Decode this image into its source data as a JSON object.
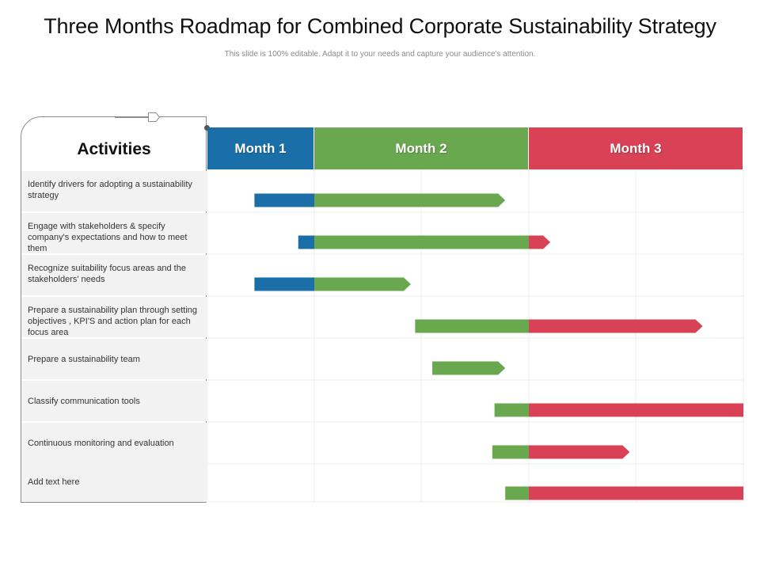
{
  "title": "Three Months Roadmap for Combined Corporate Sustainability Strategy",
  "subtitle": "This slide is 100% editable.  Adapt it to your needs and capture your audience's attention.",
  "activities_header": "Activities",
  "months": [
    {
      "label": "Month 1",
      "color": "#1b6fa8"
    },
    {
      "label": "Month 2",
      "color": "#6aa84f"
    },
    {
      "label": "Month 3",
      "color": "#d94156"
    }
  ],
  "activities": [
    {
      "label": "Identify drivers for adopting a sustainability strategy",
      "start": 0.44,
      "end": 1.89
    },
    {
      "label": "Engage with stakeholders & specify company's expectations and how to meet them",
      "start": 0.85,
      "end": 2.1
    },
    {
      "label": "Recognize suitability focus areas and the stakeholders' needs",
      "start": 0.44,
      "end": 1.45
    },
    {
      "label": "Prepare a sustainability plan through setting objectives , KPI'S and action plan for each focus area",
      "start": 1.47,
      "end": 2.81
    },
    {
      "label": "Prepare a sustainability team",
      "start": 1.89,
      "end": 1.55
    },
    {
      "label": "Classify communication tools",
      "start": 1.84,
      "end": 3.87
    },
    {
      "label": "Continuous monitoring and evaluation",
      "start": 1.83,
      "end": 2.47
    },
    {
      "label": "Add text here",
      "start": 1.89,
      "end": 3.02
    }
  ]
}
